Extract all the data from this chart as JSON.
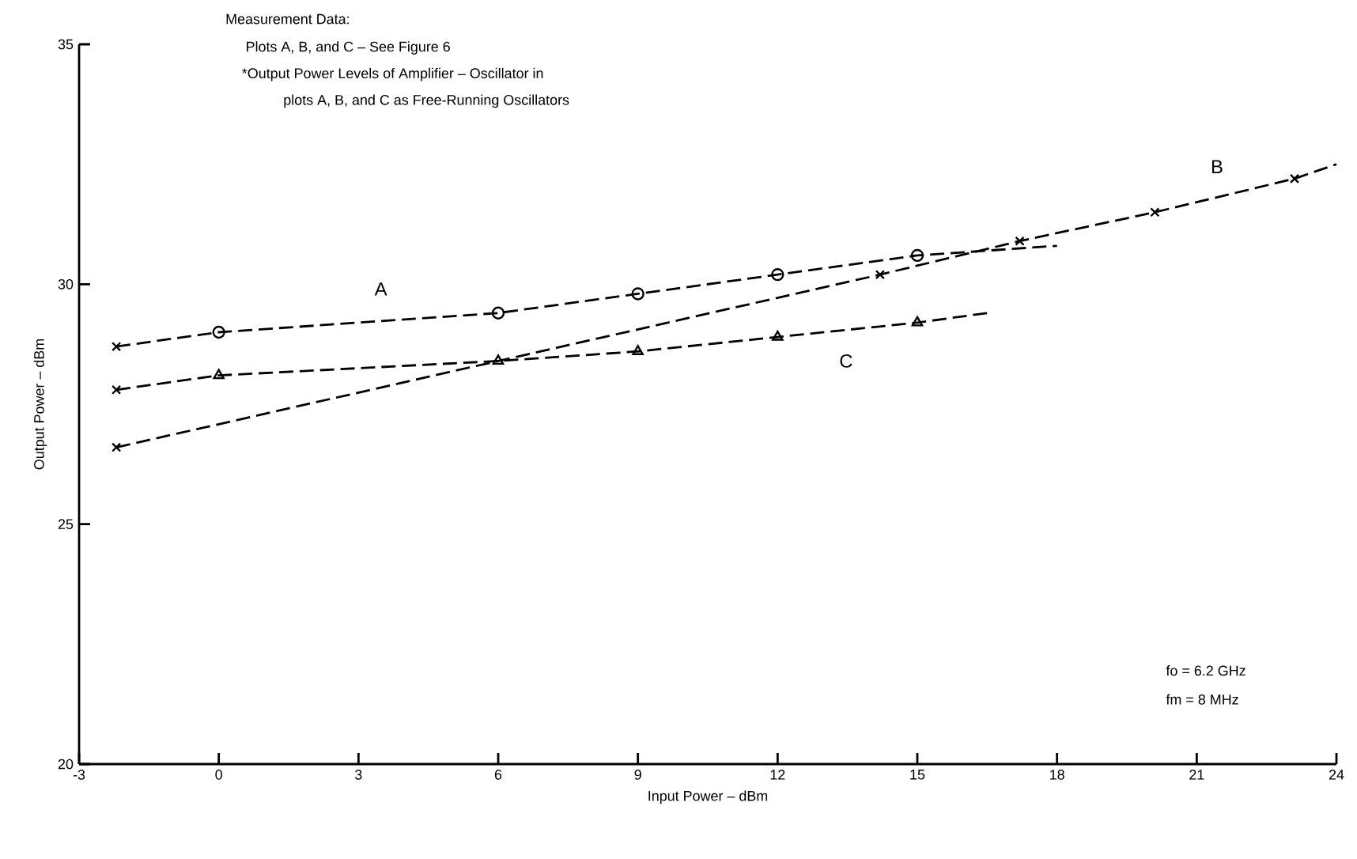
{
  "chart_data": {
    "type": "line",
    "xlabel": "Input Power – dBm",
    "ylabel": "Output Power – dBm",
    "xlim": [
      -3,
      24
    ],
    "ylim": [
      20,
      35
    ],
    "xticks": [
      -3,
      0,
      3,
      6,
      9,
      12,
      15,
      18,
      21,
      24
    ],
    "yticks": [
      20,
      25,
      30,
      35
    ],
    "grid": false,
    "series": [
      {
        "color": "#000000",
        "line_style": "dashed",
        "marker": "none",
        "x": [
          -2.2,
          0,
          6,
          9,
          12,
          15,
          18
        ],
        "values": [
          28.7,
          29.0,
          29.4,
          29.8,
          30.2,
          30.6,
          30.8
        ]
      },
      {
        "color": "#000000",
        "line_style": "dashed",
        "marker": "none",
        "x": [
          -2.2,
          14.2,
          17.2,
          20.1,
          23.1,
          24
        ],
        "values": [
          26.6,
          30.2,
          30.9,
          31.5,
          32.2,
          32.5
        ]
      },
      {
        "color": "#000000",
        "line_style": "dashed",
        "marker": "none",
        "x": [
          -2.2,
          0,
          6,
          9,
          12,
          15,
          16.5
        ],
        "values": [
          27.8,
          28.1,
          28.4,
          28.6,
          28.9,
          29.2,
          29.4
        ]
      },
      {
        "type": "scatter",
        "color": "#000000",
        "marker": "circle",
        "x": [
          0,
          6,
          9,
          12,
          15
        ],
        "values": [
          29.0,
          29.4,
          29.8,
          30.2,
          30.6
        ]
      },
      {
        "type": "scatter",
        "color": "#000000",
        "marker": "cross",
        "x": [
          14.2,
          17.2,
          20.1,
          23.1
        ],
        "values": [
          30.2,
          30.9,
          31.5,
          32.2
        ]
      },
      {
        "type": "scatter",
        "color": "#000000",
        "marker": "triangle",
        "x": [
          0,
          6,
          9,
          12,
          15
        ],
        "values": [
          28.1,
          28.4,
          28.6,
          28.9,
          29.2
        ]
      },
      {
        "type": "scatter",
        "color": "#000000",
        "marker": "cross",
        "x": [
          -2.2,
          -2.2,
          -2.2
        ],
        "values": [
          28.7,
          27.8,
          26.6
        ]
      }
    ],
    "annotations": [
      "Measurement Data:",
      "Plots A, B, and C – See Figure 6",
      "*Output Power Levels of Amplifier – Oscillator in",
      "plots A, B, and C as Free-Running Oscillators",
      "fo  =  6.2 GHz",
      "fm  =  8 MHz",
      "A",
      "B",
      "C"
    ]
  }
}
